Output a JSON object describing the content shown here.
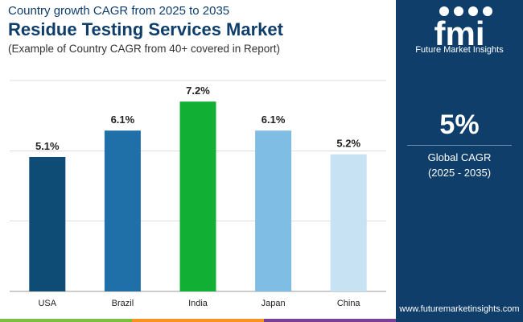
{
  "header": {
    "subtitle": "Country growth CAGR from 2025 to 2035",
    "title": "Residue Testing Services Market",
    "description": "(Example of Country CAGR from 40+ covered in Report)"
  },
  "side_panel": {
    "logo_text": "fmi",
    "logo_caption": "Future Market Insights",
    "stat_value": "5%",
    "stat_label_line1": "Global CAGR",
    "stat_label_line2": "(2025 - 2035)",
    "website": "www.futuremarketinsights.com",
    "background_color": "#0f3e6b"
  },
  "bottom_strip_colors": [
    "#7ac142",
    "#f7941d",
    "#7b3f98"
  ],
  "chart_data": {
    "type": "bar",
    "categories": [
      "USA",
      "Brazil",
      "India",
      "Japan",
      "China"
    ],
    "values": [
      5.1,
      6.1,
      7.2,
      6.1,
      5.2
    ],
    "data_labels": [
      "5.1%",
      "6.1%",
      "7.2%",
      "6.1%",
      "5.2%"
    ],
    "colors": [
      "#0f4c75",
      "#1f6fa8",
      "#11b035",
      "#7fbde4",
      "#c6e2f3"
    ],
    "ylim": [
      0,
      8
    ],
    "gridlines": [
      0,
      2.67,
      5.33,
      8
    ],
    "grid": true,
    "legend": false
  }
}
